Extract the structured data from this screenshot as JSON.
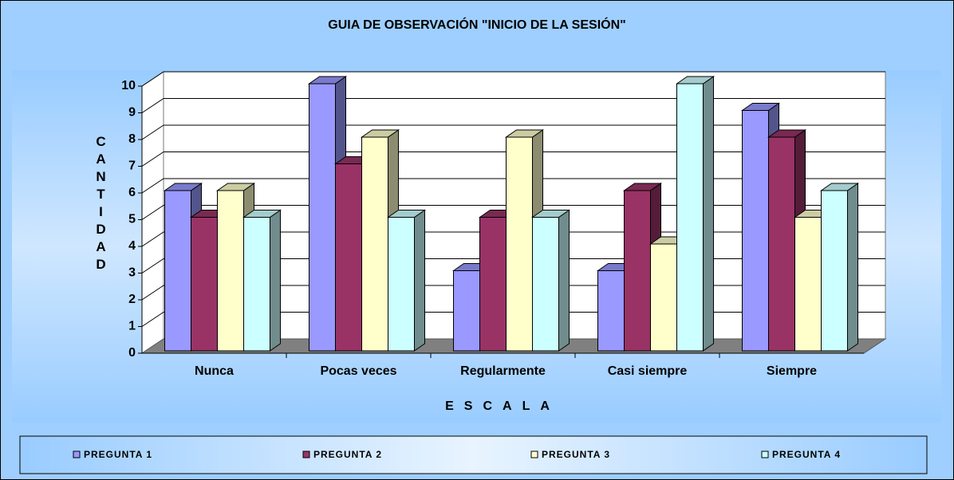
{
  "chart_data": {
    "type": "bar3d",
    "title": "GUIA DE OBSERVACIÓN \"INICIO DE LA SESIÓN\"",
    "x_label": "ESCALA",
    "y_label": "CANTIDAD",
    "categories": [
      "Nunca",
      "Pocas veces",
      "Regularmente",
      "Casi siempre",
      "Siempre"
    ],
    "series": [
      {
        "name": "PREGUNTA 1",
        "color": "#9999ff",
        "values": [
          6,
          10,
          3,
          3,
          9
        ]
      },
      {
        "name": "PREGUNTA 2",
        "color": "#993366",
        "values": [
          5,
          7,
          5,
          6,
          8
        ]
      },
      {
        "name": "PREGUNTA 3",
        "color": "#ffffcc",
        "values": [
          6,
          8,
          8,
          4,
          5
        ]
      },
      {
        "name": "PREGUNTA 4",
        "color": "#ccffff",
        "values": [
          5,
          5,
          5,
          10,
          6
        ]
      }
    ],
    "ylim": [
      0,
      10
    ],
    "yticks": [
      0,
      1,
      2,
      3,
      4,
      5,
      6,
      7,
      8,
      9,
      10
    ],
    "grid": true,
    "legend": "bottom"
  }
}
